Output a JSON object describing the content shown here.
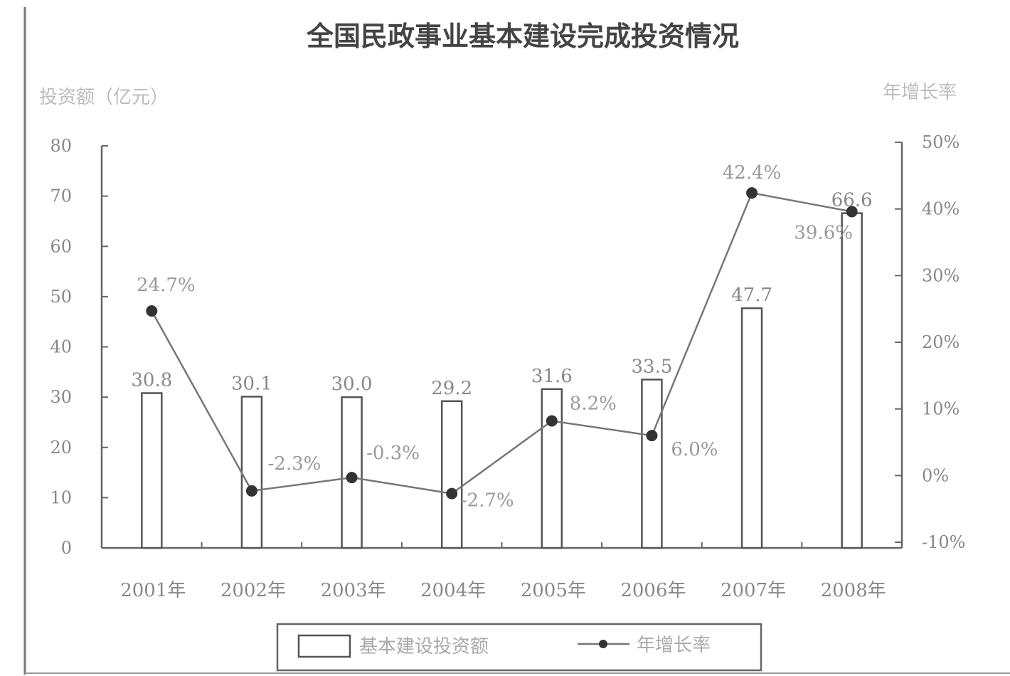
{
  "chart_data": {
    "type": "bar",
    "title": "全国民政事业基本建设完成投资情况",
    "ylabel": "投资额（亿元）",
    "y2label": "年增长率",
    "categories": [
      "2001年",
      "2002年",
      "2003年",
      "2004年",
      "2005年",
      "2006年",
      "2007年",
      "2008年"
    ],
    "series": [
      {
        "name": "基本建设投资额",
        "kind": "bar",
        "axis": "left",
        "values": [
          30.8,
          30.1,
          30.0,
          29.2,
          31.6,
          33.5,
          47.7,
          66.6
        ],
        "value_labels": [
          "30.8",
          "30.1",
          "30.0",
          "29.2",
          "31.6",
          "33.5",
          "47.7",
          "66.6"
        ]
      },
      {
        "name": "年增长率",
        "kind": "line",
        "axis": "right",
        "values": [
          24.7,
          -2.3,
          -0.3,
          -2.7,
          8.2,
          6.0,
          42.4,
          39.6
        ],
        "value_labels": [
          "24.7%",
          "-2.3%",
          "-0.3%",
          "-2.7%",
          "8.2%",
          "6.0%",
          "42.4%",
          "39.6%"
        ]
      }
    ],
    "ylim": [
      0,
      80
    ],
    "yticks": [
      "0",
      "10",
      "20",
      "30",
      "40",
      "50",
      "60",
      "70",
      "80"
    ],
    "y2lim": [
      -10,
      50
    ],
    "y2ticks": [
      "-10%",
      "0%",
      "10%",
      "20%",
      "30%",
      "40%",
      "50%"
    ],
    "grid": false,
    "legend_position": "bottom",
    "colors": {
      "bar_fill": "#ffffff",
      "bar_stroke": "#555555",
      "line": "#777777",
      "marker": "#333333",
      "axis": "#666666"
    }
  }
}
